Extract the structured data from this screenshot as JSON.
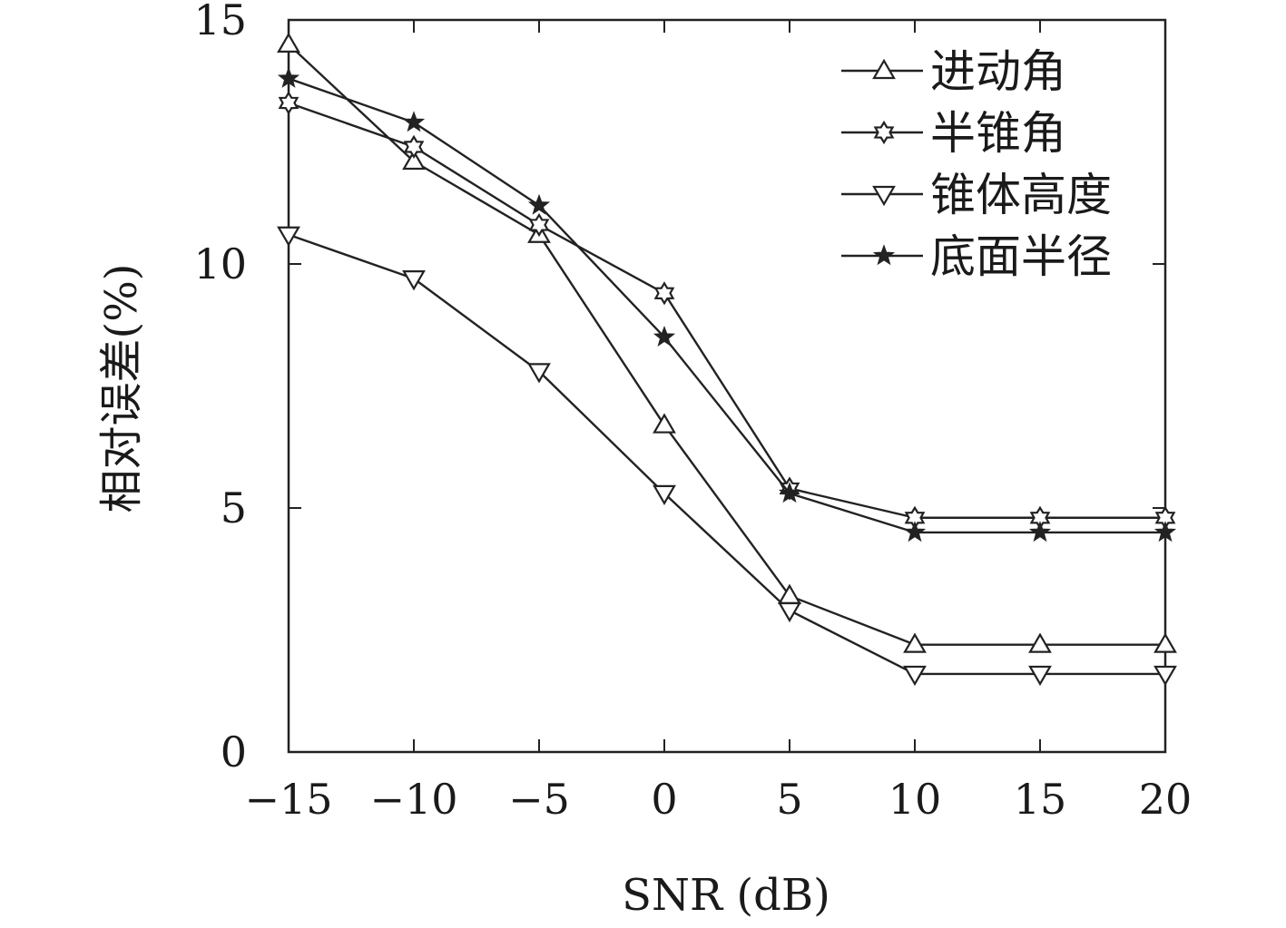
{
  "chart_data": {
    "type": "line",
    "title": "",
    "xlabel": "SNR (dB)",
    "ylabel": "相对误差(%)",
    "xlim": [
      -15,
      20
    ],
    "ylim": [
      0,
      15
    ],
    "x_ticks": [
      -15,
      -10,
      -5,
      0,
      5,
      10,
      15,
      20
    ],
    "x_tick_labels": [
      "−15",
      "−10",
      "−5",
      "0",
      "5",
      "10",
      "15",
      "20"
    ],
    "y_ticks": [
      0,
      5,
      10,
      15
    ],
    "y_tick_labels": [
      "0",
      "5",
      "10",
      "15"
    ],
    "grid": false,
    "legend_position": "top-right",
    "x": [
      -15,
      -10,
      -5,
      0,
      5,
      10,
      15,
      20
    ],
    "series": [
      {
        "name": "进动角",
        "marker": "triangle-up",
        "values": [
          14.5,
          12.1,
          10.6,
          6.7,
          3.2,
          2.2,
          2.2,
          2.2
        ]
      },
      {
        "name": "半锥角",
        "marker": "star-of-david",
        "values": [
          13.3,
          12.4,
          10.8,
          9.4,
          5.4,
          4.8,
          4.8,
          4.8
        ]
      },
      {
        "name": "锥体高度",
        "marker": "triangle-down",
        "values": [
          10.6,
          9.7,
          7.8,
          5.3,
          2.9,
          1.6,
          1.6,
          1.6
        ]
      },
      {
        "name": "底面半径",
        "marker": "star",
        "values": [
          13.8,
          12.9,
          11.2,
          8.5,
          5.3,
          4.5,
          4.5,
          4.5
        ]
      }
    ],
    "line_color": "#222222"
  }
}
